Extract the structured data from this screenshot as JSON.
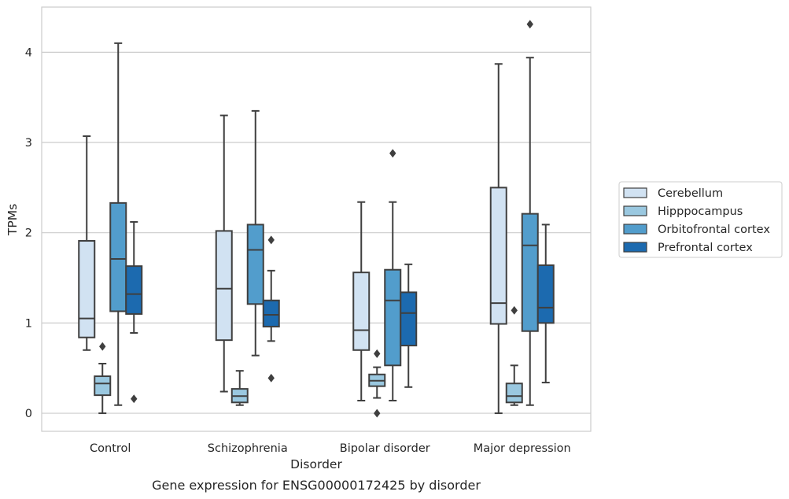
{
  "caption": "Gene expression for ENSG00000172425 by disorder",
  "chart_data": {
    "type": "box",
    "title": "",
    "xlabel": "Disorder",
    "ylabel": "TPMs",
    "ylim": [
      -0.2,
      4.5
    ],
    "yticks": [
      0,
      1,
      2,
      3,
      4
    ],
    "grid": "horizontal",
    "legend_position": "right",
    "categories": [
      "Control",
      "Schizophrenia",
      "Bipolar disorder",
      "Major depression"
    ],
    "series": [
      {
        "name": "Cerebellum",
        "color": "#d1e2f2",
        "boxes": [
          {
            "whislo": 0.7,
            "q1": 0.84,
            "med": 1.05,
            "q3": 1.91,
            "whishi": 3.07,
            "fliers": []
          },
          {
            "whislo": 0.24,
            "q1": 0.81,
            "med": 1.38,
            "q3": 2.02,
            "whishi": 3.3,
            "fliers": []
          },
          {
            "whislo": 0.14,
            "q1": 0.7,
            "med": 0.92,
            "q3": 1.56,
            "whishi": 2.34,
            "fliers": []
          },
          {
            "whislo": 0.0,
            "q1": 0.99,
            "med": 1.22,
            "q3": 2.5,
            "whishi": 3.87,
            "fliers": []
          }
        ]
      },
      {
        "name": "Hipppocampus",
        "color": "#9ac8e0",
        "boxes": [
          {
            "whislo": 0.0,
            "q1": 0.2,
            "med": 0.33,
            "q3": 0.41,
            "whishi": 0.55,
            "fliers": [
              0.74
            ]
          },
          {
            "whislo": 0.09,
            "q1": 0.12,
            "med": 0.19,
            "q3": 0.27,
            "whishi": 0.47,
            "fliers": []
          },
          {
            "whislo": 0.17,
            "q1": 0.3,
            "med": 0.36,
            "q3": 0.43,
            "whishi": 0.51,
            "fliers": [
              0.66,
              0.0
            ]
          },
          {
            "whislo": 0.09,
            "q1": 0.12,
            "med": 0.19,
            "q3": 0.33,
            "whishi": 0.53,
            "fliers": [
              1.14
            ]
          }
        ]
      },
      {
        "name": "Orbitofrontal cortex",
        "color": "#529dcc",
        "boxes": [
          {
            "whislo": 0.09,
            "q1": 1.13,
            "med": 1.71,
            "q3": 2.33,
            "whishi": 4.1,
            "fliers": []
          },
          {
            "whislo": 0.64,
            "q1": 1.21,
            "med": 1.81,
            "q3": 2.09,
            "whishi": 3.35,
            "fliers": []
          },
          {
            "whislo": 0.14,
            "q1": 0.53,
            "med": 1.25,
            "q3": 1.59,
            "whishi": 2.34,
            "fliers": [
              2.88
            ]
          },
          {
            "whislo": 0.09,
            "q1": 0.91,
            "med": 1.86,
            "q3": 2.21,
            "whishi": 3.94,
            "fliers": [
              4.31
            ]
          }
        ]
      },
      {
        "name": "Prefrontal cortex",
        "color": "#1c6aaf",
        "boxes": [
          {
            "whislo": 0.89,
            "q1": 1.1,
            "med": 1.32,
            "q3": 1.63,
            "whishi": 2.12,
            "fliers": [
              0.16
            ]
          },
          {
            "whislo": 0.8,
            "q1": 0.96,
            "med": 1.09,
            "q3": 1.25,
            "whishi": 1.58,
            "fliers": [
              1.92,
              0.39
            ]
          },
          {
            "whislo": 0.29,
            "q1": 0.75,
            "med": 1.11,
            "q3": 1.34,
            "whishi": 1.65,
            "fliers": []
          },
          {
            "whislo": 0.34,
            "q1": 1.0,
            "med": 1.17,
            "q3": 1.64,
            "whishi": 2.09,
            "fliers": []
          }
        ]
      }
    ]
  }
}
